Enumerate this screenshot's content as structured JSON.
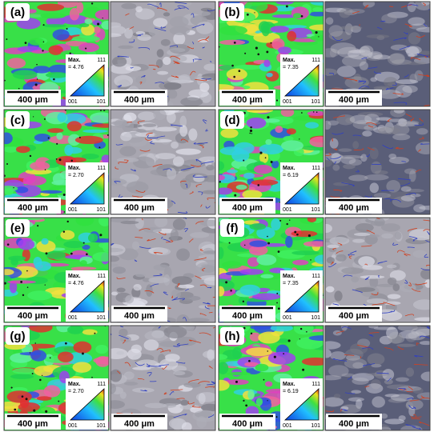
{
  "panels": [
    {
      "label": "(a)",
      "scale_bars": [
        "400 μm",
        "400 μm"
      ],
      "legend": {
        "max": "Max.",
        "max_value": "= 4.76",
        "top": "111",
        "left": "001",
        "right": "101"
      }
    },
    {
      "label": "(b)",
      "scale_bars": [
        "400 μm",
        "400 μm"
      ],
      "legend": {
        "max": "Max.",
        "max_value": "= 7.35",
        "top": "111",
        "left": "001",
        "right": "101"
      }
    },
    {
      "label": "(c)",
      "scale_bars": [
        "400 μm",
        "400 μm"
      ],
      "legend": {
        "max": "Max.",
        "max_value": "= 2.70",
        "top": "111",
        "left": "001",
        "right": "101"
      }
    },
    {
      "label": "(d)",
      "scale_bars": [
        "400 μm",
        "400 μm"
      ],
      "legend": {
        "max": "Max.",
        "max_value": "= 6.19",
        "top": "111",
        "left": "001",
        "right": "101"
      }
    },
    {
      "label": "(e)",
      "scale_bars": [
        "400 μm",
        "400 μm"
      ],
      "legend": {
        "max": "Max.",
        "max_value": "= 4.76",
        "top": "111",
        "left": "001",
        "right": "101"
      }
    },
    {
      "label": "(f)",
      "scale_bars": [
        "400 μm",
        "400 μm"
      ],
      "legend": {
        "max": "Max.",
        "max_value": "= 7.35",
        "top": "111",
        "left": "001",
        "right": "101"
      }
    },
    {
      "label": "(g)",
      "scale_bars": [
        "400 μm",
        "400 μm"
      ],
      "legend": {
        "max": "Max.",
        "max_value": "= 2.70",
        "top": "111",
        "left": "001",
        "right": "101"
      }
    },
    {
      "label": "(h)",
      "scale_bars": [
        "400 μm",
        "400 μm"
      ],
      "legend": {
        "max": "Max.",
        "max_value": "= 6.19",
        "top": "111",
        "left": "001",
        "right": "101"
      }
    }
  ]
}
